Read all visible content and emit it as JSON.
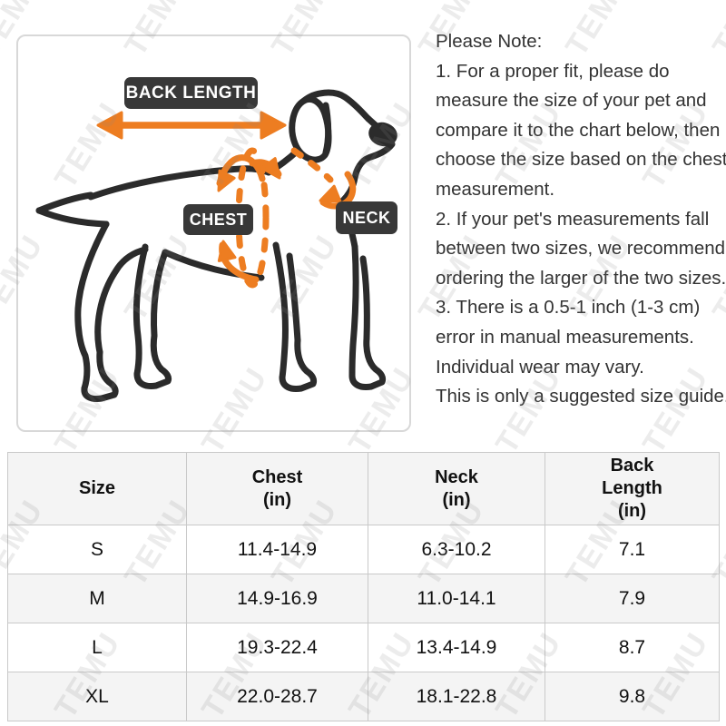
{
  "watermark": {
    "text": "TEMU"
  },
  "colors": {
    "accent_orange": "#ED7D21",
    "badge_dark": "#383838",
    "dog_outline": "#2B2B2B",
    "table_border": "#C9C9C9",
    "table_alt_bg": "#F4F4F4",
    "watermark_gray": "#E3E3E3"
  },
  "diagram": {
    "back_length_label": "BACK LENGTH",
    "chest_label": "CHEST",
    "neck_label": "NECK"
  },
  "note": {
    "lines": [
      "Please Note:",
      "1. For a proper fit, please do",
      "measure the size of your pet and",
      "compare it to the chart below, then",
      "choose the size based on the chest",
      "measurement.",
      "2. If your pet's measurements fall",
      "between two sizes, we recommend",
      "ordering the larger of the two sizes.",
      "3. There is a 0.5-1 inch (1-3 cm)",
      "error in manual measurements.",
      "Individual wear may vary.",
      "This is only a suggested size guide."
    ]
  },
  "size_table": {
    "headers": [
      [
        "Size"
      ],
      [
        "Chest",
        "(in)"
      ],
      [
        "Neck",
        "(in)"
      ],
      [
        "Back",
        "Length",
        "(in)"
      ]
    ],
    "rows": [
      [
        "S",
        "11.4-14.9",
        "6.3-10.2",
        "7.1"
      ],
      [
        "M",
        "14.9-16.9",
        "11.0-14.1",
        "7.9"
      ],
      [
        "L",
        "19.3-22.4",
        "13.4-14.9",
        "8.7"
      ],
      [
        "XL",
        "22.0-28.7",
        "18.1-22.8",
        "9.8"
      ]
    ]
  }
}
